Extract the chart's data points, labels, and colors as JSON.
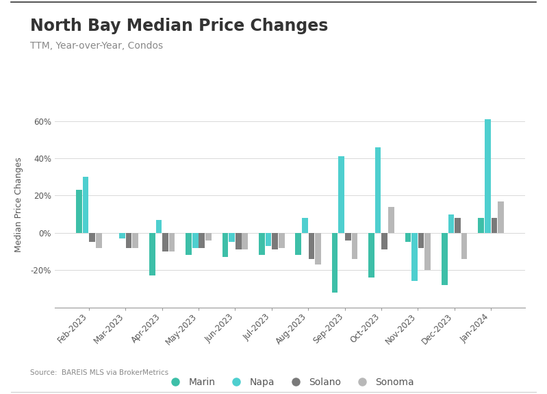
{
  "title": "North Bay Median Price Changes",
  "subtitle": "TTM, Year-over-Year, Condos",
  "source": "Source:  BAREIS MLS via BrokerMetrics",
  "ylabel": "Median Price Changes",
  "categories": [
    "Feb-2023",
    "Mar-2023",
    "Apr-2023",
    "May-2023",
    "Jun-2023",
    "Jul-2023",
    "Aug-2023",
    "Sep-2023",
    "Oct-2023",
    "Nov-2023",
    "Dec-2023",
    "Jan-2024"
  ],
  "series": {
    "Marin": [
      23,
      0,
      -23,
      -12,
      -13,
      -12,
      -12,
      -32,
      -24,
      -5,
      -28,
      8
    ],
    "Napa": [
      30,
      -3,
      7,
      -8,
      -5,
      -7,
      8,
      41,
      46,
      -26,
      10,
      61
    ],
    "Solano": [
      -5,
      -8,
      -10,
      -8,
      -9,
      -9,
      -14,
      -4,
      -9,
      -8,
      8,
      8
    ],
    "Sonoma": [
      -8,
      -8,
      -10,
      -4,
      -9,
      -8,
      -17,
      -14,
      14,
      -20,
      -14,
      17
    ]
  },
  "colors": {
    "Marin": "#3dbfa8",
    "Napa": "#4ecfcf",
    "Solano": "#7a7a7a",
    "Sonoma": "#b8b8b8"
  },
  "ylim": [
    -40,
    70
  ],
  "yticks": [
    -20,
    0,
    20,
    40,
    60
  ],
  "background_color": "#ffffff",
  "grid_color": "#d8d8d8",
  "title_fontsize": 17,
  "subtitle_fontsize": 10,
  "tick_fontsize": 8.5,
  "ylabel_fontsize": 9,
  "legend_fontsize": 10,
  "bar_width": 0.18
}
